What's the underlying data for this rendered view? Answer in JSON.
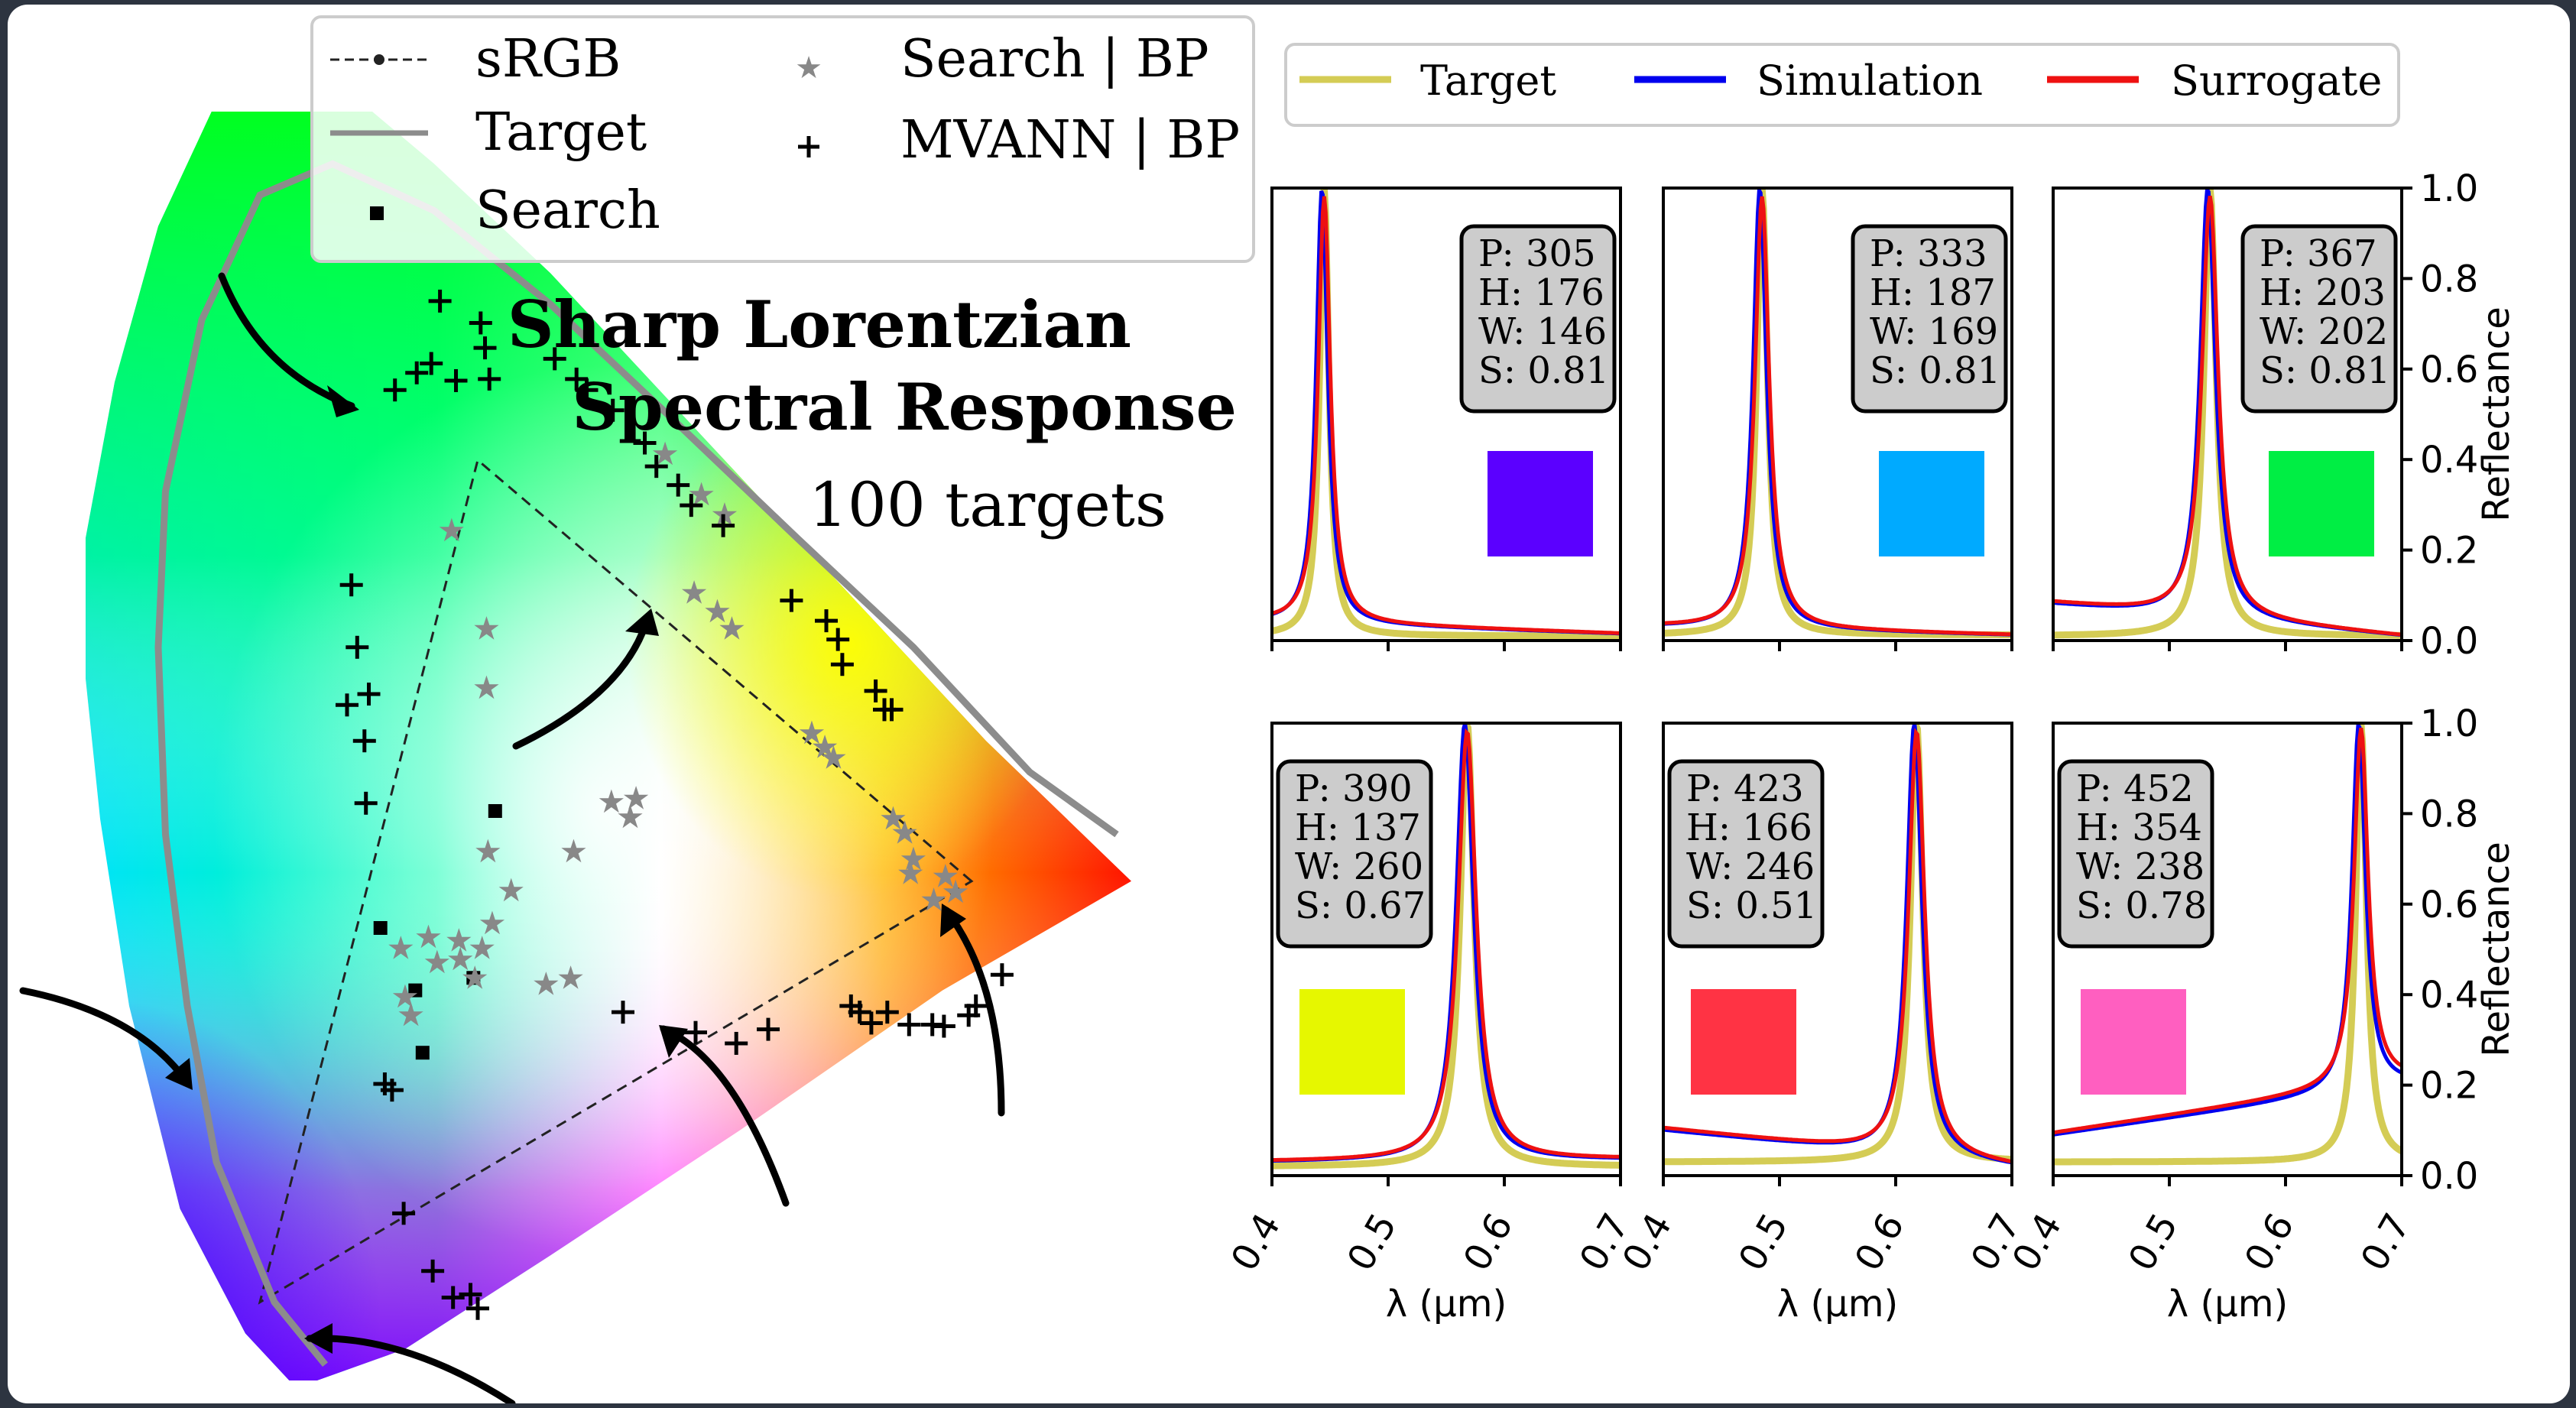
{
  "chart_data": [
    {
      "type": "scatter",
      "subtype": "cie-chromaticity-diagram",
      "title": "Sharp Lorentzian",
      "title_line2": "Spectral Response",
      "subtitle": "100 targets",
      "legend": {
        "placement": "top",
        "entries": [
          {
            "label": "sRGB",
            "marker": "dashed-line-dot",
            "color": "#222222"
          },
          {
            "label": "Target",
            "marker": "solid-line",
            "color": "#8c8c8c"
          },
          {
            "label": "Search",
            "marker": "square",
            "color": "#000000"
          },
          {
            "label": "Search | BP",
            "marker": "star",
            "color": "#888888"
          },
          {
            "label": "MVANN | BP",
            "marker": "plus",
            "color": "#000000"
          }
        ]
      },
      "series": [
        {
          "name": "Search",
          "points": [
            [
              0.233,
              0.3
            ],
            [
              0.262,
              0.22
            ],
            [
              0.312,
              0.375
            ],
            [
              0.257,
              0.26
            ],
            [
              0.297,
              0.268
            ]
          ]
        },
        {
          "name": "Search | BP",
          "points": [
            [
              0.282,
              0.555
            ],
            [
              0.306,
              0.492
            ],
            [
              0.306,
              0.454
            ],
            [
              0.247,
              0.287
            ],
            [
              0.266,
              0.294
            ],
            [
              0.25,
              0.256
            ],
            [
              0.272,
              0.278
            ],
            [
              0.287,
              0.292
            ],
            [
              0.307,
              0.349
            ],
            [
              0.31,
              0.303
            ],
            [
              0.323,
              0.324
            ],
            [
              0.303,
              0.287
            ],
            [
              0.298,
              0.268
            ],
            [
              0.254,
              0.244
            ],
            [
              0.288,
              0.28
            ],
            [
              0.364,
              0.268
            ],
            [
              0.347,
              0.264
            ],
            [
              0.366,
              0.349
            ],
            [
              0.392,
              0.381
            ],
            [
              0.409,
              0.383
            ],
            [
              0.405,
              0.371
            ],
            [
              0.449,
              0.515
            ],
            [
              0.465,
              0.503
            ],
            [
              0.475,
              0.492
            ],
            [
              0.53,
              0.425
            ],
            [
              0.539,
              0.416
            ],
            [
              0.545,
              0.409
            ],
            [
              0.586,
              0.37
            ],
            [
              0.594,
              0.361
            ],
            [
              0.6,
              0.344
            ],
            [
              0.598,
              0.335
            ],
            [
              0.622,
              0.333
            ],
            [
              0.614,
              0.318
            ],
            [
              0.629,
              0.323
            ],
            [
              0.429,
              0.604
            ],
            [
              0.454,
              0.578
            ],
            [
              0.47,
              0.565
            ]
          ]
        },
        {
          "name": "MVANN | BP",
          "points": [
            [
              0.274,
              0.702
            ],
            [
              0.302,
              0.688
            ],
            [
              0.305,
              0.672
            ],
            [
              0.243,
              0.645
            ],
            [
              0.258,
              0.656
            ],
            [
              0.268,
              0.662
            ],
            [
              0.285,
              0.651
            ],
            [
              0.308,
              0.652
            ],
            [
              0.353,
              0.665
            ],
            [
              0.368,
              0.652
            ],
            [
              0.375,
              0.645
            ],
            [
              0.393,
              0.632
            ],
            [
              0.213,
              0.52
            ],
            [
              0.217,
              0.48
            ],
            [
              0.21,
              0.443
            ],
            [
              0.225,
              0.45
            ],
            [
              0.222,
              0.42
            ],
            [
              0.223,
              0.38
            ],
            [
              0.415,
              0.611
            ],
            [
              0.423,
              0.596
            ],
            [
              0.438,
              0.584
            ],
            [
              0.447,
              0.571
            ],
            [
              0.469,
              0.558
            ],
            [
              0.516,
              0.51
            ],
            [
              0.54,
              0.497
            ],
            [
              0.548,
              0.485
            ],
            [
              0.551,
              0.469
            ],
            [
              0.574,
              0.452
            ],
            [
              0.58,
              0.44
            ],
            [
              0.585,
              0.44
            ],
            [
              0.4,
              0.246
            ],
            [
              0.45,
              0.233
            ],
            [
              0.478,
              0.226
            ],
            [
              0.5,
              0.235
            ],
            [
              0.557,
              0.25
            ],
            [
              0.563,
              0.246
            ],
            [
              0.582,
              0.246
            ],
            [
              0.571,
              0.239
            ],
            [
              0.597,
              0.238
            ],
            [
              0.613,
              0.238
            ],
            [
              0.621,
              0.237
            ],
            [
              0.638,
              0.244
            ],
            [
              0.643,
              0.25
            ],
            [
              0.661,
              0.27
            ],
            [
              0.236,
              0.2
            ],
            [
              0.241,
              0.196
            ],
            [
              0.249,
              0.117
            ],
            [
              0.269,
              0.08
            ],
            [
              0.283,
              0.063
            ],
            [
              0.295,
              0.065
            ],
            [
              0.3,
              0.056
            ]
          ]
        }
      ]
    },
    {
      "type": "line",
      "legend": {
        "placement": "top",
        "entries": [
          "Target",
          "Simulation",
          "Surrogate"
        ]
      },
      "series_colors": {
        "Target": "#d4cc55",
        "Simulation": "#0000ee",
        "Surrogate": "#ee1111"
      },
      "xlabel": "λ (μm)",
      "ylabel": "Reflectance",
      "xlim": [
        0.4,
        0.7
      ],
      "ylim": [
        0.0,
        1.0
      ],
      "xticks": [
        "0.4",
        "0.5",
        "0.6",
        "0.7"
      ],
      "yticks": [
        "0.0",
        "0.2",
        "0.4",
        "0.6",
        "0.8",
        "1.0"
      ],
      "panels": [
        {
          "label_lines": [
            "P: 305",
            "H: 176",
            "W: 146",
            "S: 0.81"
          ],
          "swatch": "#5b00ff",
          "peak": 0.445,
          "width": 0.006,
          "base": 0.01,
          "bg_left": 0.04,
          "bg_right": 0.015
        },
        {
          "label_lines": [
            "P: 333",
            "H: 187",
            "W: 169",
            "S: 0.81"
          ],
          "swatch": "#00aaff",
          "peak": 0.485,
          "width": 0.007,
          "base": 0.012,
          "bg_left": 0.03,
          "bg_right": 0.012
        },
        {
          "label_lines": [
            "P: 367",
            "H: 203",
            "W: 202",
            "S: 0.81"
          ],
          "swatch": "#00ee44",
          "peak": 0.535,
          "width": 0.008,
          "base": 0.01,
          "bg_left": 0.08,
          "bg_right": 0.01
        },
        {
          "label_lines": [
            "P: 390",
            "H: 137",
            "W: 260",
            "S: 0.67"
          ],
          "swatch": "#e6f700",
          "peak": 0.568,
          "width": 0.009,
          "base": 0.02,
          "bg_left": 0.03,
          "bg_right": 0.035
        },
        {
          "label_lines": [
            "P: 423",
            "H: 166",
            "W: 246",
            "S: 0.51"
          ],
          "swatch": "#ff3344",
          "peak": 0.618,
          "width": 0.008,
          "base": 0.03,
          "bg_left": 0.1,
          "bg_right": 0.02
        },
        {
          "label_lines": [
            "P: 452",
            "H: 354",
            "W: 238",
            "S: 0.78"
          ],
          "swatch": "#ff5fc0",
          "peak": 0.665,
          "width": 0.007,
          "base": 0.03,
          "bg_left": 0.09,
          "bg_right": 0.2
        }
      ]
    }
  ]
}
